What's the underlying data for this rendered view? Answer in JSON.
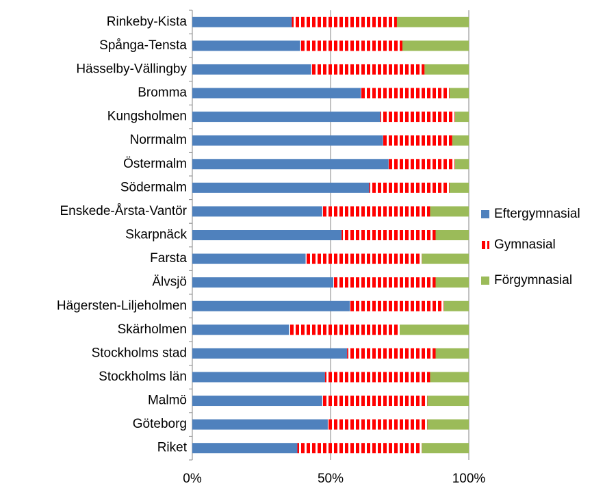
{
  "chart_data": {
    "type": "stacked-bar-horizontal",
    "categories": [
      "Rinkeby-Kista",
      "Spånga-Tensta",
      "Hässelby-Vällingby",
      "Bromma",
      "Kungsholmen",
      "Norrmalm",
      "Östermalm",
      "Södermalm",
      "Enskede-Årsta-Vantör",
      "Skarpnäck",
      "Farsta",
      "Älvsjö",
      "Hägersten-Liljeholmen",
      "Skärholmen",
      "Stockholms stad",
      "Stockholms län",
      "Malmö",
      "Göteborg",
      "Riket"
    ],
    "series": [
      {
        "name": "Eftergymnasial",
        "color": "#4f81bd",
        "values": [
          36,
          39,
          43,
          61,
          68,
          69,
          71,
          64,
          47,
          54,
          41,
          51,
          57,
          35,
          56,
          48,
          47,
          49,
          38
        ]
      },
      {
        "name": "Gymnasial",
        "color": "#ff0000",
        "values": [
          38,
          37,
          41,
          32,
          27,
          25,
          24,
          29,
          39,
          34,
          42,
          37,
          34,
          40,
          32,
          38,
          38,
          36,
          45
        ]
      },
      {
        "name": "Förgymnasial",
        "color": "#9bbb59",
        "values": [
          26,
          24,
          16,
          7,
          5,
          6,
          5,
          7,
          14,
          12,
          17,
          12,
          9,
          25,
          12,
          14,
          15,
          15,
          17
        ]
      }
    ],
    "xlim": [
      0,
      100
    ],
    "xticks": [
      {
        "value": 0,
        "label": "0%"
      },
      {
        "value": 50,
        "label": "50%"
      },
      {
        "value": 100,
        "label": "100%"
      }
    ],
    "grid": true,
    "legend": "right"
  }
}
